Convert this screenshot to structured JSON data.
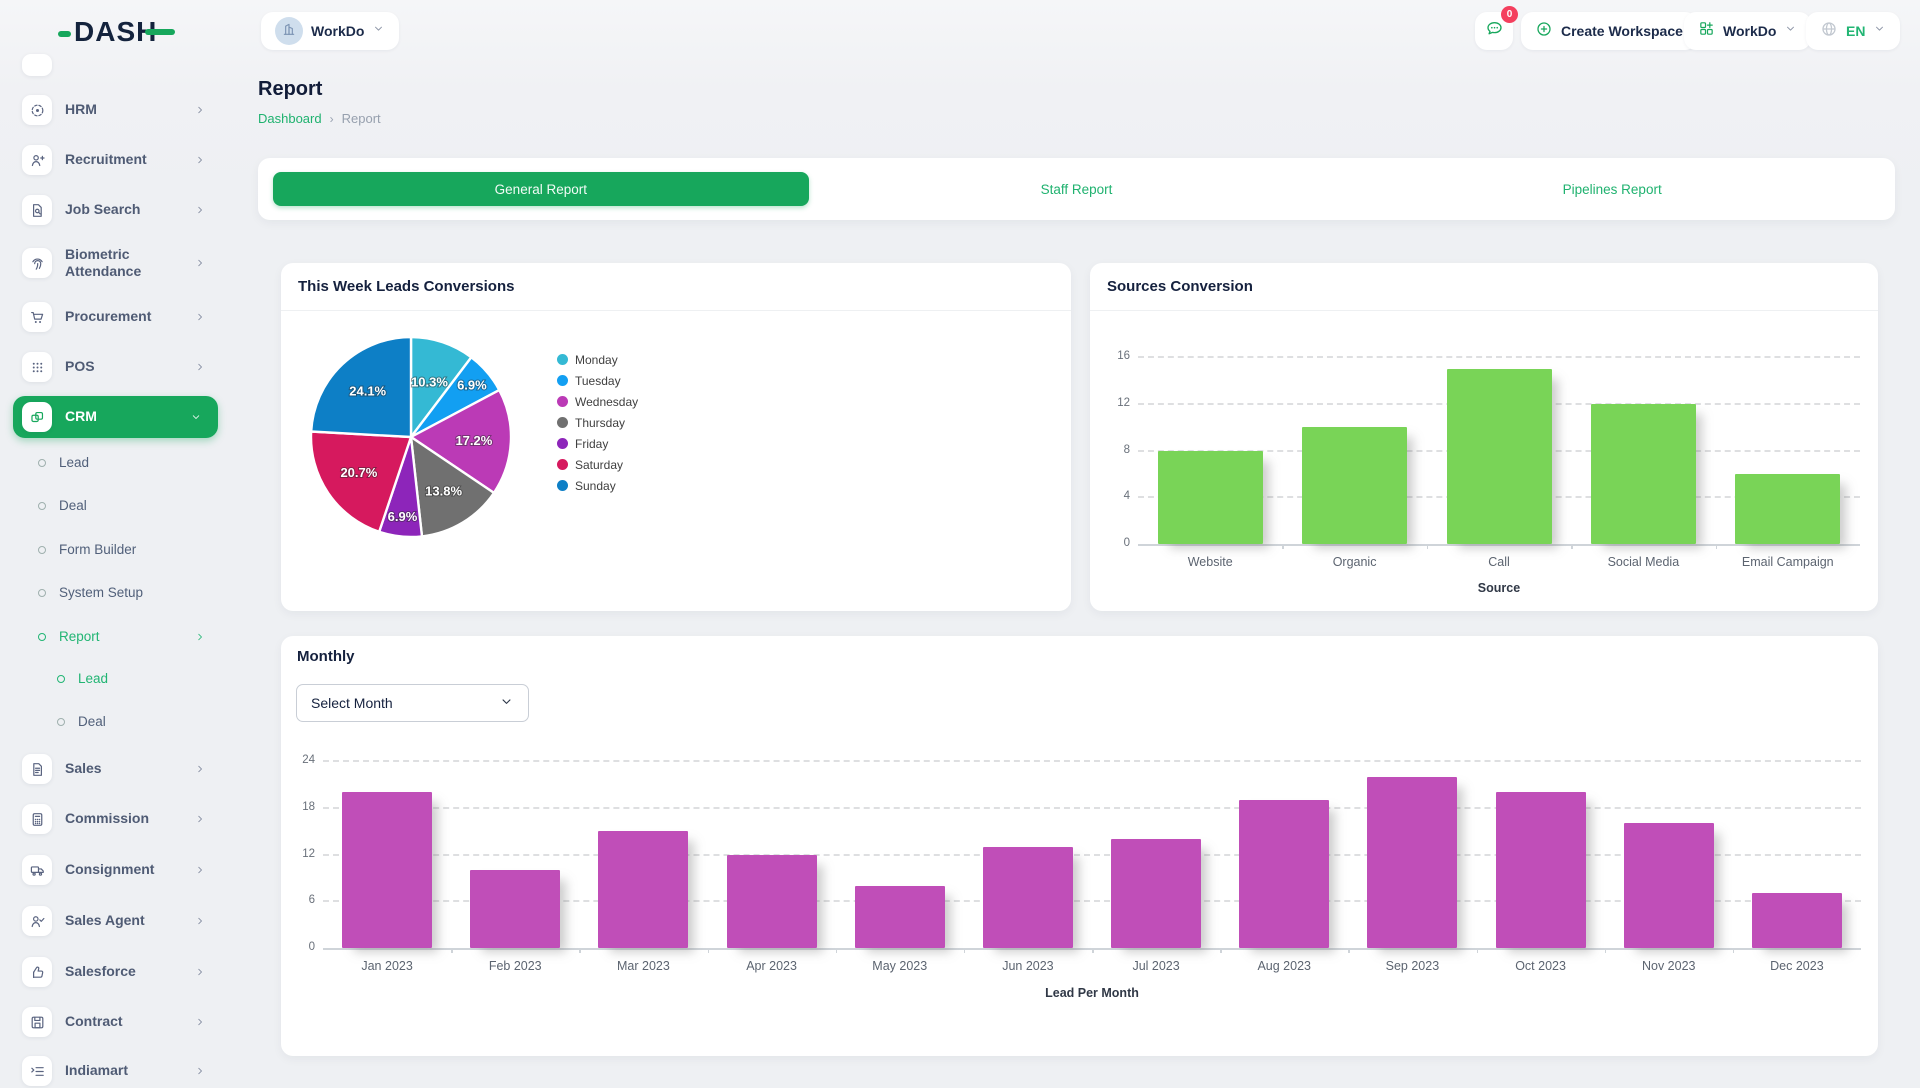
{
  "theme": {
    "primary_green": "#17a75c",
    "link_green": "#21b573",
    "badge_red": "#f43f5e",
    "bar_green": "#79d457",
    "bar_magenta": "#c04eb8"
  },
  "header": {
    "logo_text_main": "DAS",
    "logo_text_h": "H",
    "workspace_chip_label": "WorkDo",
    "messages_badge": "0",
    "create_workspace_label": "Create Workspace",
    "workspace_switcher_label": "WorkDo",
    "language_label": "EN"
  },
  "sidebar": {
    "items": [
      {
        "label": "HRM",
        "icon": "hrm-scan-icon",
        "level": 0,
        "chevron": "right"
      },
      {
        "label": "Recruitment",
        "icon": "recruitment-person-icon",
        "level": 0,
        "chevron": "right"
      },
      {
        "label": "Job Search",
        "icon": "job-search-icon",
        "level": 0,
        "chevron": "right"
      },
      {
        "label": "Biometric Attendance",
        "icon": "biometric-fingerprint-icon",
        "level": 0,
        "chevron": "right",
        "two_line": true
      },
      {
        "label": "Procurement",
        "icon": "procurement-cart-icon",
        "level": 0,
        "chevron": "right"
      },
      {
        "label": "POS",
        "icon": "pos-grid-icon",
        "level": 0,
        "chevron": "right"
      },
      {
        "label": "CRM",
        "icon": "crm-cards-icon",
        "level": 0,
        "chevron": "down",
        "active": true
      },
      {
        "label": "Lead",
        "level": 1
      },
      {
        "label": "Deal",
        "level": 1
      },
      {
        "label": "Form Builder",
        "level": 1
      },
      {
        "label": "System Setup",
        "level": 1
      },
      {
        "label": "Report",
        "level": 1,
        "active": true,
        "chevron": "right"
      },
      {
        "label": "Lead",
        "level": 2,
        "active": true
      },
      {
        "label": "Deal",
        "level": 2
      },
      {
        "label": "Sales",
        "icon": "sales-doc-icon",
        "level": 0,
        "chevron": "right"
      },
      {
        "label": "Commission",
        "icon": "commission-calculator-icon",
        "level": 0,
        "chevron": "right"
      },
      {
        "label": "Consignment",
        "icon": "consignment-truck-icon",
        "level": 0,
        "chevron": "right"
      },
      {
        "label": "Sales Agent",
        "icon": "sales-agent-icon",
        "level": 0,
        "chevron": "right"
      },
      {
        "label": "Salesforce",
        "icon": "salesforce-thumbs-icon",
        "level": 0,
        "chevron": "right"
      },
      {
        "label": "Contract",
        "icon": "contract-save-icon",
        "level": 0,
        "chevron": "right"
      },
      {
        "label": "Indiamart",
        "icon": "indiamart-list-icon",
        "level": 0,
        "chevron": "right"
      }
    ]
  },
  "page": {
    "title": "Report",
    "breadcrumb_link": "Dashboard",
    "breadcrumb_current": "Report"
  },
  "tabs": [
    {
      "label": "General Report",
      "active": true
    },
    {
      "label": "Staff Report",
      "active": false
    },
    {
      "label": "Pipelines Report",
      "active": false
    }
  ],
  "cards": {
    "week_pie_title": "This Week Leads Conversions",
    "sources_title": "Sources Conversion",
    "monthly_title": "Monthly",
    "select_month_placeholder": "Select Month"
  },
  "chart_data": [
    {
      "type": "pie",
      "title": "This Week Leads Conversions",
      "labels": [
        "Monday",
        "Tuesday",
        "Wednesday",
        "Thursday",
        "Friday",
        "Saturday",
        "Sunday"
      ],
      "values": [
        10.3,
        6.9,
        17.2,
        13.8,
        6.9,
        20.7,
        24.1
      ],
      "value_labels": [
        "10.3%",
        "6.9%",
        "17.2%",
        "13.8%",
        "6.9%",
        "20.7%",
        "24.1%"
      ],
      "colors": [
        "#34b9d4",
        "#129ff2",
        "#bb3ab6",
        "#707070",
        "#8d25ba",
        "#d6195e",
        "#0d7fc6"
      ],
      "legend_position": "right"
    },
    {
      "type": "bar",
      "title": "Sources Conversion",
      "categories": [
        "Website",
        "Organic",
        "Call",
        "Social Media",
        "Email Campaign"
      ],
      "values": [
        8,
        10,
        15,
        12,
        6
      ],
      "xlabel": "Source",
      "ylabel": "",
      "ylim": [
        0,
        16
      ],
      "yticks": [
        0,
        4,
        8,
        12,
        16
      ],
      "bar_color": "#79d457",
      "grid": "dashed"
    },
    {
      "type": "bar",
      "title": "Monthly",
      "categories": [
        "Jan 2023",
        "Feb 2023",
        "Mar 2023",
        "Apr 2023",
        "May 2023",
        "Jun 2023",
        "Jul 2023",
        "Aug 2023",
        "Sep 2023",
        "Oct 2023",
        "Nov 2023",
        "Dec 2023"
      ],
      "values": [
        20,
        10,
        15,
        12,
        8,
        13,
        14,
        19,
        22,
        20,
        16,
        7
      ],
      "xlabel": "Lead Per Month",
      "ylabel": "",
      "ylim": [
        0,
        24
      ],
      "yticks": [
        0,
        6,
        12,
        18,
        24
      ],
      "bar_color": "#c04eb8",
      "grid": "dashed"
    }
  ]
}
